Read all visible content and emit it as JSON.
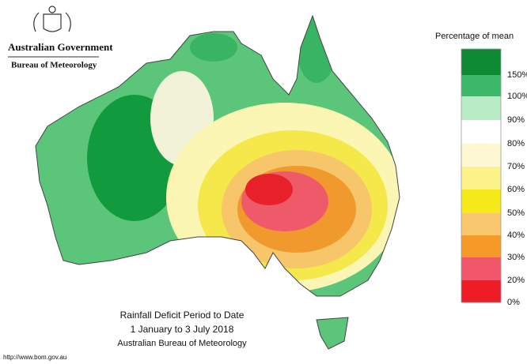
{
  "header": {
    "title": "Australian Government",
    "subtitle": "Bureau of Meteorology"
  },
  "legend": {
    "title": "Percentage of mean",
    "labels": [
      "150%",
      "100%",
      "90%",
      "80%",
      "70%",
      "60%",
      "50%",
      "40%",
      "30%",
      "20%",
      "0%"
    ]
  },
  "caption": {
    "title": "Rainfall Deficit Period to Date",
    "period": "1 January to 3 July 2018",
    "source": "Australian Bureau of Meteorology"
  },
  "footer": {
    "url": "http://www.bom.gov.au"
  }
}
